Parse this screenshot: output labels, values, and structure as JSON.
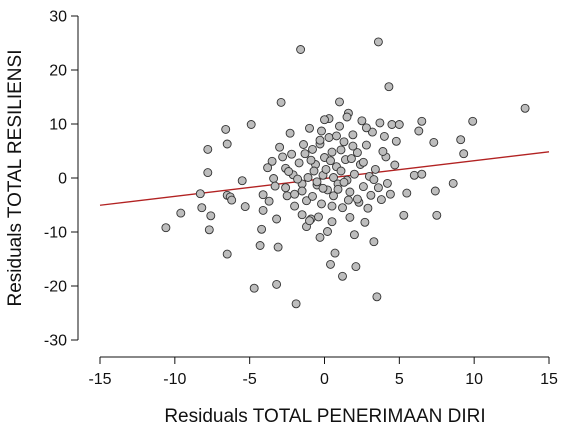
{
  "chart_data": {
    "type": "scatter",
    "xlabel": "Residuals TOTAL PENERIMAAN DIRI",
    "ylabel": "Residuals TOTAL RESILIENSI",
    "xlim": [
      -15,
      15
    ],
    "ylim": [
      -30,
      30
    ],
    "xticks": [
      "-15",
      "-10",
      "-5",
      "0",
      "5",
      "10",
      "15"
    ],
    "yticks": [
      "-30",
      "-20",
      "-10",
      "0",
      "10",
      "20",
      "30"
    ],
    "grid": false,
    "legend": "none",
    "point_color": "#bdbdbd",
    "point_edge": "#333333",
    "line_color": "#b22222",
    "regression": {
      "slope": 0.33,
      "intercept": -0.1
    },
    "points": [
      [
        -10.6,
        -9.2
      ],
      [
        -9.6,
        -6.5
      ],
      [
        -8.3,
        -2.9
      ],
      [
        -8.2,
        -5.5
      ],
      [
        -7.8,
        5.3
      ],
      [
        -7.8,
        1.0
      ],
      [
        -7.6,
        -7.0
      ],
      [
        -7.7,
        -9.6
      ],
      [
        -6.6,
        9.0
      ],
      [
        -6.5,
        6.3
      ],
      [
        -6.5,
        -3.2
      ],
      [
        -6.3,
        -3.5
      ],
      [
        -6.2,
        -4.1
      ],
      [
        -6.5,
        -14.1
      ],
      [
        -5.5,
        -0.5
      ],
      [
        -5.3,
        -5.3
      ],
      [
        -4.9,
        9.9
      ],
      [
        -4.7,
        -20.4
      ],
      [
        -4.3,
        -12.5
      ],
      [
        -4.2,
        -9.5
      ],
      [
        -4.1,
        -6.0
      ],
      [
        -3.7,
        -4.3
      ],
      [
        -3.5,
        3.1
      ],
      [
        -3.4,
        -0.1
      ],
      [
        -3.3,
        -1.5
      ],
      [
        -3.2,
        -7.6
      ],
      [
        -3.1,
        -12.8
      ],
      [
        -3.2,
        -19.7
      ],
      [
        -2.9,
        14.0
      ],
      [
        -2.8,
        3.9
      ],
      [
        -2.6,
        1.8
      ],
      [
        -2.5,
        -3.3
      ],
      [
        -2.3,
        8.3
      ],
      [
        -2.1,
        0.6
      ],
      [
        -2.0,
        -5.2
      ],
      [
        -1.9,
        -23.3
      ],
      [
        -1.7,
        2.8
      ],
      [
        -1.6,
        23.8
      ],
      [
        -1.5,
        -1.1
      ],
      [
        -1.5,
        -6.8
      ],
      [
        -1.3,
        4.5
      ],
      [
        -1.2,
        -4.2
      ],
      [
        -1.1,
        0.1
      ],
      [
        -1.0,
        9.2
      ],
      [
        -0.9,
        -7.6
      ],
      [
        -0.8,
        5.3
      ],
      [
        -0.8,
        -3.4
      ],
      [
        -0.6,
        2.5
      ],
      [
        -0.5,
        -1.3
      ],
      [
        -0.4,
        -7.2
      ],
      [
        -0.3,
        6.3
      ],
      [
        -0.3,
        -11.0
      ],
      [
        -0.2,
        -4.8
      ],
      [
        -0.1,
        0.5
      ],
      [
        0.0,
        3.8
      ],
      [
        0.1,
        1.6
      ],
      [
        0.2,
        -2.2
      ],
      [
        0.3,
        11.0
      ],
      [
        0.3,
        7.5
      ],
      [
        0.4,
        -16.0
      ],
      [
        0.5,
        -8.1
      ],
      [
        0.5,
        4.8
      ],
      [
        0.6,
        0.1
      ],
      [
        0.6,
        -3.3
      ],
      [
        0.7,
        -13.9
      ],
      [
        0.8,
        2.1
      ],
      [
        0.9,
        -1.1
      ],
      [
        1.0,
        9.6
      ],
      [
        1.0,
        14.1
      ],
      [
        1.1,
        5.2
      ],
      [
        1.2,
        -5.5
      ],
      [
        1.2,
        -18.2
      ],
      [
        1.3,
        6.7
      ],
      [
        1.4,
        3.4
      ],
      [
        1.5,
        -0.4
      ],
      [
        1.6,
        12.0
      ],
      [
        1.7,
        -2.6
      ],
      [
        1.7,
        -7.3
      ],
      [
        1.9,
        8.0
      ],
      [
        2.0,
        0.7
      ],
      [
        2.1,
        -16.4
      ],
      [
        2.2,
        4.7
      ],
      [
        2.3,
        -4.5
      ],
      [
        2.4,
        2.5
      ],
      [
        2.5,
        10.6
      ],
      [
        2.6,
        -1.6
      ],
      [
        2.7,
        -8.2
      ],
      [
        2.8,
        6.1
      ],
      [
        3.0,
        0.3
      ],
      [
        3.1,
        -3.2
      ],
      [
        3.2,
        8.5
      ],
      [
        3.3,
        -11.8
      ],
      [
        3.4,
        1.6
      ],
      [
        3.5,
        -22.0
      ],
      [
        3.6,
        25.2
      ],
      [
        3.7,
        10.2
      ],
      [
        3.8,
        -4.0
      ],
      [
        4.0,
        7.7
      ],
      [
        4.1,
        3.9
      ],
      [
        4.2,
        -1.0
      ],
      [
        4.3,
        16.9
      ],
      [
        4.5,
        9.9
      ],
      [
        4.7,
        2.4
      ],
      [
        5.3,
        -6.9
      ],
      [
        5.5,
        -2.8
      ],
      [
        6.0,
        0.5
      ],
      [
        6.3,
        8.7
      ],
      [
        6.5,
        10.5
      ],
      [
        6.5,
        0.7
      ],
      [
        7.3,
        6.6
      ],
      [
        7.4,
        -2.4
      ],
      [
        7.5,
        -6.9
      ],
      [
        8.6,
        -1.0
      ],
      [
        9.1,
        7.1
      ],
      [
        9.3,
        4.5
      ],
      [
        9.9,
        10.5
      ],
      [
        13.4,
        12.9
      ],
      [
        -1.2,
        -9.0
      ],
      [
        0.9,
        -2.1
      ],
      [
        -2.0,
        -3.0
      ],
      [
        1.8,
        3.6
      ],
      [
        -0.7,
        1.3
      ],
      [
        2.9,
        -5.6
      ],
      [
        -2.4,
        1.2
      ],
      [
        1.5,
        11.3
      ],
      [
        -3.0,
        5.7
      ],
      [
        0.2,
        -9.9
      ],
      [
        3.9,
        4.9
      ],
      [
        -1.8,
        -0.2
      ],
      [
        0.8,
        7.8
      ],
      [
        2.2,
        -3.9
      ],
      [
        -0.9,
        3.3
      ],
      [
        5.0,
        9.9
      ],
      [
        -4.1,
        -3.1
      ],
      [
        1.3,
        -0.8
      ],
      [
        -0.3,
        7.0
      ],
      [
        2.6,
        2.9
      ],
      [
        -2.6,
        -1.8
      ],
      [
        0.5,
        -5.2
      ],
      [
        3.3,
        -0.3
      ],
      [
        -1.4,
        6.2
      ],
      [
        1.9,
        5.9
      ],
      [
        -0.1,
        -1.9
      ],
      [
        4.4,
        -3.0
      ],
      [
        -3.8,
        1.9
      ],
      [
        0.0,
        10.8
      ],
      [
        2.0,
        -10.5
      ],
      [
        -1.0,
        -7.9
      ],
      [
        1.1,
        1.3
      ],
      [
        2.8,
        9.3
      ],
      [
        -0.5,
        -0.7
      ],
      [
        3.6,
        -1.8
      ],
      [
        -2.2,
        4.4
      ],
      [
        0.4,
        3.2
      ],
      [
        1.6,
        -4.1
      ],
      [
        -1.5,
        -2.4
      ],
      [
        4.8,
        6.8
      ],
      [
        -0.2,
        8.7
      ]
    ]
  }
}
